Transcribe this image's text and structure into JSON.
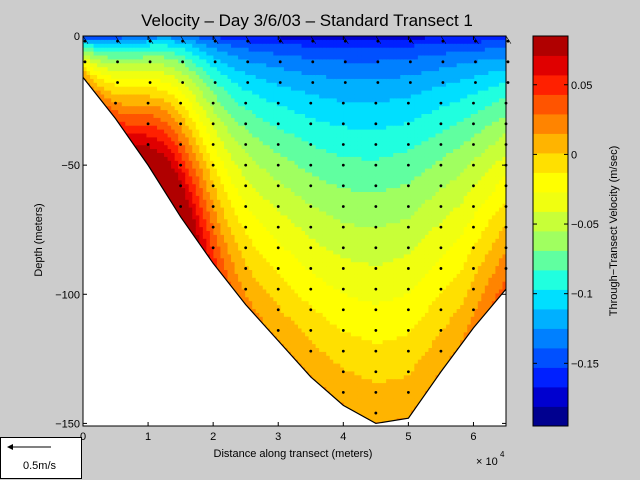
{
  "chart_data": {
    "type": "heatmap",
    "title": "Velocity – Day 3/6/03 – Standard Transect 1",
    "xlabel": "Distance along transect (meters)",
    "xexponent_base": "× 10",
    "xexponent_power": "4",
    "ylabel": "Depth (meters)",
    "xlim": [
      0,
      65000
    ],
    "ylim": [
      -151,
      0
    ],
    "xticks": [
      {
        "value": 0,
        "label": "0"
      },
      {
        "value": 10000,
        "label": "1"
      },
      {
        "value": 20000,
        "label": "2"
      },
      {
        "value": 30000,
        "label": "3"
      },
      {
        "value": 40000,
        "label": "4"
      },
      {
        "value": 50000,
        "label": "5"
      },
      {
        "value": 60000,
        "label": "6"
      }
    ],
    "yticks": [
      {
        "value": 0,
        "label": "0"
      },
      {
        "value": -50,
        "label": "−50"
      },
      {
        "value": -100,
        "label": "−100"
      },
      {
        "value": -150,
        "label": "−150"
      }
    ],
    "bottom_profile": [
      [
        0,
        -16
      ],
      [
        5000,
        -32
      ],
      [
        10000,
        -50
      ],
      [
        15000,
        -70
      ],
      [
        20000,
        -88
      ],
      [
        25000,
        -104
      ],
      [
        30000,
        -118
      ],
      [
        35000,
        -132
      ],
      [
        40000,
        -143
      ],
      [
        45000,
        -150
      ],
      [
        50000,
        -148
      ],
      [
        55000,
        -130
      ],
      [
        60000,
        -113
      ],
      [
        65000,
        -98
      ]
    ],
    "colorbar": {
      "label": "Through−Transect Velocity (m/sec)",
      "min": -0.195,
      "max": 0.085,
      "levels": 20,
      "ticks": [
        {
          "value": 0.05,
          "label": "0.05"
        },
        {
          "value": 0,
          "label": "0"
        },
        {
          "value": -0.05,
          "label": "−0.05"
        },
        {
          "value": -0.1,
          "label": "−0.1"
        },
        {
          "value": -0.15,
          "label": "−0.15"
        }
      ],
      "colors": [
        "#00008f",
        "#0000cf",
        "#0020ff",
        "#0050ff",
        "#0080ff",
        "#00b0ff",
        "#00dfff",
        "#20ffdf",
        "#60ffa0",
        "#a0ff60",
        "#c8ff38",
        "#f0ff10",
        "#ffff00",
        "#ffe000",
        "#ffb400",
        "#ff8400",
        "#ff5400",
        "#ff2000",
        "#e00000",
        "#b00000"
      ]
    },
    "station_x": [
      0,
      5000,
      10000,
      15000,
      20000,
      25000,
      30000,
      35000,
      40000,
      45000,
      50000,
      55000,
      60000,
      65000
    ],
    "scale_vector": {
      "label": "0.5m/s"
    }
  }
}
